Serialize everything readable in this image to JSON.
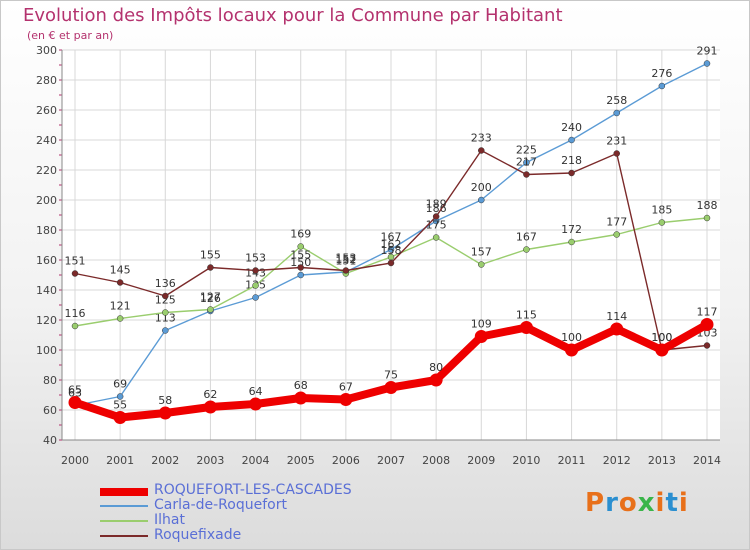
{
  "title": "Evolution des Impôts locaux pour la Commune par Habitant",
  "subtitle": "(en € et par an)",
  "brand": {
    "letters": [
      "P",
      "r",
      "o",
      "x",
      "i",
      "t",
      "i"
    ],
    "colors": [
      "#e8701a",
      "#2b8fd0",
      "#e8701a",
      "#3ab54a",
      "#e8701a",
      "#2b8fd0",
      "#e8701a"
    ]
  },
  "chart_data": {
    "type": "line",
    "x": [
      2000,
      2001,
      2002,
      2003,
      2004,
      2005,
      2006,
      2007,
      2008,
      2009,
      2010,
      2011,
      2012,
      2013,
      2014
    ],
    "ylim": [
      40,
      300
    ],
    "yticks": [
      40,
      60,
      80,
      100,
      120,
      140,
      160,
      180,
      200,
      220,
      240,
      260,
      280,
      300
    ],
    "grid": true,
    "legend_position": "bottom-left",
    "series": [
      {
        "name": "ROQUEFORT-LES-CASCADES",
        "color": "#ee0000",
        "values": [
          65,
          55,
          58,
          62,
          64,
          68,
          67,
          75,
          80,
          109,
          115,
          100,
          114,
          100,
          117
        ]
      },
      {
        "name": "Carla-de-Roquefort",
        "color": "#5b9bd5",
        "values": [
          63,
          69,
          113,
          126,
          135,
          150,
          152,
          167,
          186,
          200,
          225,
          240,
          258,
          276,
          291
        ]
      },
      {
        "name": "Ilhat",
        "color": "#9acd6e",
        "values": [
          116,
          121,
          125,
          127,
          143,
          169,
          151,
          162,
          175,
          157,
          167,
          172,
          177,
          185,
          188
        ]
      },
      {
        "name": "Roquefixade",
        "color": "#7b2a2a",
        "values": [
          151,
          145,
          136,
          155,
          153,
          155,
          153,
          158,
          189,
          233,
          217,
          218,
          231,
          100,
          103
        ]
      }
    ]
  }
}
